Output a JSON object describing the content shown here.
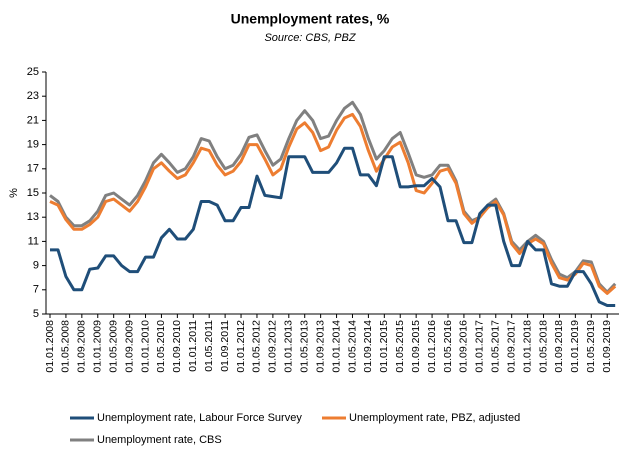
{
  "chart_data": {
    "type": "line",
    "title": "Unemployment rates, %",
    "subtitle": "Source: CBS, PBZ",
    "y_label": "%",
    "categories": [
      "01.01.2008",
      null,
      "01.05.2008",
      null,
      "01.09.2008",
      null,
      "01.01.2009",
      null,
      "01.05.2009",
      null,
      "01.09.2009",
      null,
      "01.01.2010",
      null,
      "01.05.2010",
      null,
      "01.09.2010",
      null,
      "01.01.2011",
      null,
      "01.05.2011",
      null,
      "01.09.2011",
      null,
      "01.01.2012",
      null,
      "01.05.2012",
      null,
      "01.09.2012",
      null,
      "01.01.2013",
      null,
      "01.05.2013",
      null,
      "01.09.2013",
      null,
      "01.01.2014",
      null,
      "01.05.2014",
      null,
      "01.09.2014",
      null,
      "01.01.2015",
      null,
      "01.05.2015",
      null,
      "01.09.2015",
      null,
      "01.01.2016",
      null,
      "01.05.2016",
      null,
      "01.09.2016",
      null,
      "01.01.2017",
      null,
      "01.05.2017",
      null,
      "01.09.2017",
      null,
      "01.01.2018",
      null,
      "01.05.2018",
      null,
      "01.09.2018",
      null,
      "01.01.2019",
      null,
      "01.05.2019",
      null,
      "01.09.2019",
      null
    ],
    "series": [
      {
        "name": "Unemployment rate, Labour Force Survey",
        "color": "#1f4e79",
        "values": [
          10.3,
          10.3,
          8.1,
          7.0,
          7.0,
          8.7,
          8.8,
          9.8,
          9.8,
          9.0,
          8.5,
          8.5,
          9.7,
          9.7,
          11.3,
          12.0,
          11.2,
          11.2,
          12.0,
          14.3,
          14.3,
          14.0,
          12.7,
          12.7,
          13.8,
          13.8,
          16.4,
          14.8,
          14.7,
          14.6,
          18.0,
          18.0,
          18.0,
          16.7,
          16.7,
          16.7,
          17.5,
          18.7,
          18.7,
          16.5,
          16.5,
          15.6,
          18.0,
          18.0,
          15.5,
          15.5,
          15.6,
          15.6,
          16.2,
          15.5,
          12.7,
          12.7,
          10.9,
          10.9,
          13.3,
          14.0,
          14.0,
          11.0,
          9.0,
          9.0,
          11.0,
          10.3,
          10.3,
          7.5,
          7.3,
          7.3,
          8.5,
          8.5,
          7.5,
          6.0,
          5.7,
          5.7
        ]
      },
      {
        "name": "Unemployment rate, PBZ, adjusted",
        "color": "#ed7d31",
        "values": [
          14.3,
          14.0,
          12.8,
          12.0,
          12.0,
          12.4,
          13.0,
          14.3,
          14.5,
          14.0,
          13.5,
          14.3,
          15.5,
          17.0,
          17.5,
          16.8,
          16.2,
          16.5,
          17.5,
          18.7,
          18.5,
          17.3,
          16.5,
          16.8,
          17.6,
          19.0,
          19.0,
          17.8,
          16.5,
          17.0,
          18.8,
          20.3,
          20.8,
          20.0,
          18.5,
          18.8,
          20.2,
          21.2,
          21.5,
          20.5,
          18.5,
          16.8,
          17.8,
          18.8,
          19.2,
          17.5,
          15.2,
          15.0,
          15.8,
          16.8,
          17.0,
          15.8,
          13.3,
          12.5,
          13.0,
          13.8,
          14.3,
          13.2,
          10.8,
          10.0,
          10.8,
          11.2,
          10.8,
          9.2,
          8.0,
          7.8,
          8.3,
          9.2,
          9.0,
          7.3,
          6.7,
          7.3
        ]
      },
      {
        "name": "Unemployment rate, CBS",
        "color": "#808080",
        "values": [
          14.8,
          14.3,
          13.0,
          12.3,
          12.3,
          12.7,
          13.5,
          14.8,
          15.0,
          14.5,
          14.0,
          14.8,
          16.0,
          17.5,
          18.2,
          17.5,
          16.7,
          17.0,
          18.0,
          19.5,
          19.3,
          18.0,
          17.0,
          17.3,
          18.2,
          19.6,
          19.8,
          18.5,
          17.3,
          17.8,
          19.5,
          21.0,
          21.8,
          21.0,
          19.5,
          19.7,
          21.0,
          22.0,
          22.5,
          21.5,
          19.5,
          17.8,
          18.5,
          19.5,
          20.0,
          18.3,
          16.5,
          16.3,
          16.5,
          17.3,
          17.3,
          16.0,
          13.5,
          12.7,
          13.0,
          14.0,
          14.5,
          13.3,
          11.0,
          10.3,
          11.0,
          11.5,
          11.0,
          9.5,
          8.3,
          8.0,
          8.5,
          9.4,
          9.3,
          7.5,
          6.8,
          7.5
        ]
      }
    ],
    "ylim": [
      5,
      25
    ],
    "yticks": [
      5,
      7,
      9,
      11,
      13,
      15,
      17,
      19,
      21,
      23,
      25
    ],
    "grid": false,
    "legend": "bottom"
  }
}
